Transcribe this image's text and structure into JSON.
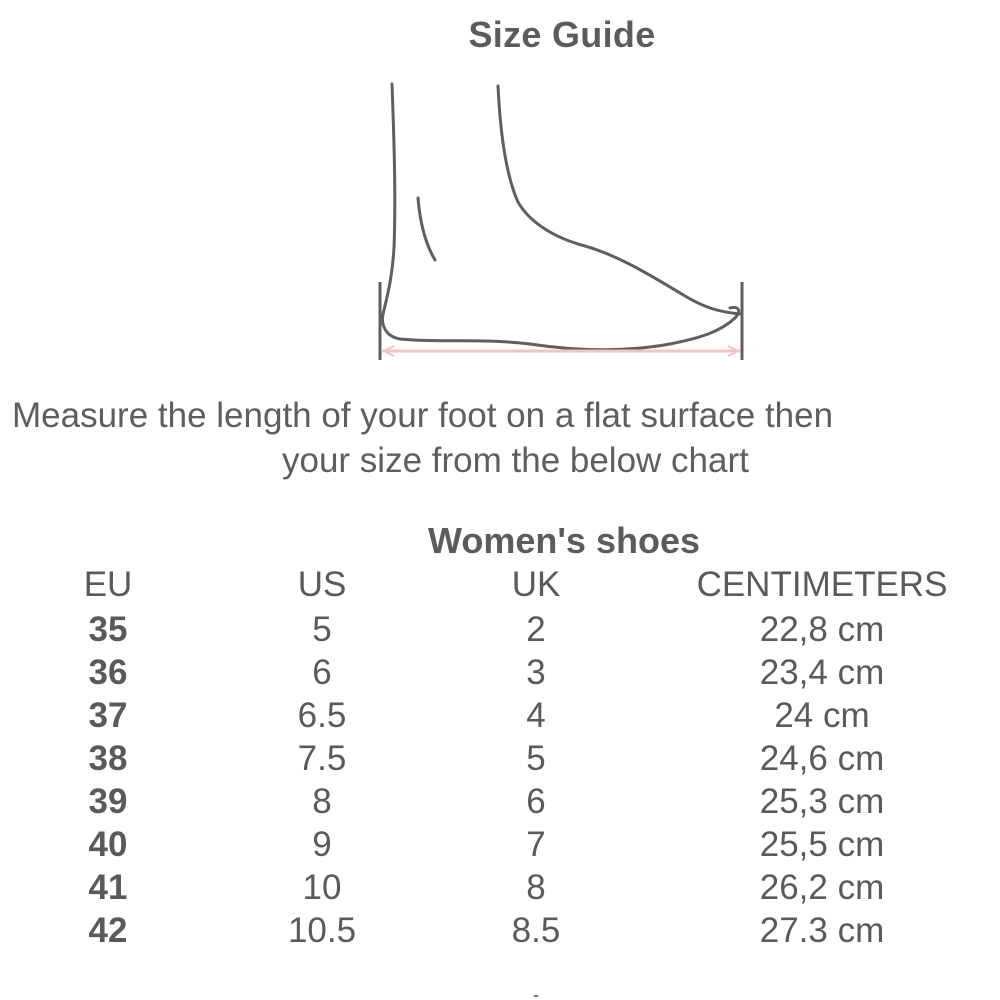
{
  "title": "Size Guide",
  "illustration": {
    "icon": "foot-side-view-icon",
    "measure_line_color": "#f2c4c8",
    "outline_color": "#5f5f5f"
  },
  "instruction": {
    "line1": "Measure the length of your foot on a flat surface then",
    "line2": "your size from the below chart"
  },
  "size_table": {
    "title": "Women's shoes",
    "columns": [
      "EU",
      "US",
      "UK",
      "CENTIMETERS"
    ],
    "rows": [
      [
        "35",
        "5",
        "2",
        "22,8 cm"
      ],
      [
        "36",
        "6",
        "3",
        "23,4 cm"
      ],
      [
        "37",
        "6.5",
        "4",
        "24 cm"
      ],
      [
        "38",
        "7.5",
        "5",
        "24,6 cm"
      ],
      [
        "39",
        "8",
        "6",
        "25,3 cm"
      ],
      [
        "40",
        "9",
        "7",
        "25,5 cm"
      ],
      [
        "41",
        "10",
        "8",
        "26,2 cm"
      ],
      [
        "42",
        "10.5",
        "8.5",
        "27.3 cm"
      ]
    ]
  }
}
